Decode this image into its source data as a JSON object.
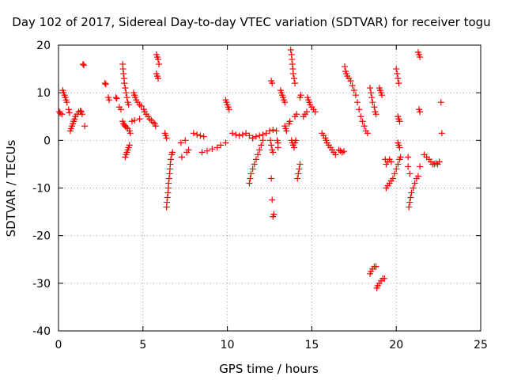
{
  "chart_data": {
    "type": "scatter",
    "title": "Day 102 of 2017, Sidereal Day-to-day VTEC variation (SDTVAR) for receiver togu",
    "xlabel": "GPS time / hours",
    "ylabel": "SDTVAR / TECUs",
    "xlim": [
      0,
      25
    ],
    "ylim": [
      -40,
      20
    ],
    "xticks": [
      "0",
      "5",
      "10",
      "15",
      "20",
      "25"
    ],
    "yticks": [
      "20",
      "10",
      "0",
      "-10",
      "-20",
      "-30",
      "-40"
    ],
    "grid": true,
    "marker": "plus",
    "color": "#ff0000",
    "series": [
      {
        "points": [
          [
            0.05,
            6.0
          ],
          [
            0.1,
            5.7
          ],
          [
            0.2,
            5.5
          ],
          [
            0.25,
            10.5
          ],
          [
            0.3,
            10.0
          ],
          [
            0.35,
            9.5
          ],
          [
            0.4,
            9.0
          ],
          [
            0.45,
            8.5
          ],
          [
            0.5,
            8.0
          ],
          [
            0.6,
            6.5
          ],
          [
            0.65,
            5.8
          ],
          [
            0.7,
            2.0
          ],
          [
            0.75,
            2.5
          ],
          [
            0.8,
            3.0
          ],
          [
            0.85,
            3.5
          ],
          [
            0.9,
            4.0
          ],
          [
            0.95,
            4.5
          ],
          [
            1.0,
            5.0
          ],
          [
            1.1,
            5.5
          ],
          [
            1.2,
            6.0
          ],
          [
            1.3,
            6.2
          ],
          [
            1.35,
            6.0
          ],
          [
            1.4,
            5.5
          ],
          [
            1.45,
            16.0
          ],
          [
            1.5,
            15.8
          ],
          [
            1.55,
            3.0
          ],
          [
            2.75,
            12.0
          ],
          [
            2.8,
            11.8
          ],
          [
            2.95,
            9.0
          ],
          [
            3.0,
            8.5
          ],
          [
            3.4,
            9.0
          ],
          [
            3.45,
            8.8
          ],
          [
            3.6,
            7.0
          ],
          [
            3.7,
            6.5
          ],
          [
            3.8,
            16.0
          ],
          [
            3.82,
            15.0
          ],
          [
            3.85,
            14.0
          ],
          [
            3.88,
            13.0
          ],
          [
            3.9,
            12.0
          ],
          [
            3.95,
            11.0
          ],
          [
            4.0,
            10.0
          ],
          [
            4.05,
            9.0
          ],
          [
            4.1,
            8.0
          ],
          [
            4.15,
            7.5
          ],
          [
            3.8,
            4.0
          ],
          [
            3.85,
            3.5
          ],
          [
            3.9,
            3.2
          ],
          [
            3.95,
            3.0
          ],
          [
            4.0,
            2.8
          ],
          [
            4.1,
            2.5
          ],
          [
            4.2,
            2.0
          ],
          [
            4.25,
            1.5
          ],
          [
            3.95,
            -3.5
          ],
          [
            4.0,
            -3.0
          ],
          [
            4.05,
            -2.5
          ],
          [
            4.1,
            -2.0
          ],
          [
            4.15,
            -1.5
          ],
          [
            4.2,
            -1.0
          ],
          [
            4.45,
            10.0
          ],
          [
            4.5,
            9.5
          ],
          [
            4.55,
            9.0
          ],
          [
            4.6,
            8.5
          ],
          [
            4.7,
            8.0
          ],
          [
            4.8,
            7.5
          ],
          [
            4.9,
            7.2
          ],
          [
            4.35,
            4.0
          ],
          [
            4.5,
            4.2
          ],
          [
            4.8,
            4.5
          ],
          [
            5.05,
            6.5
          ],
          [
            5.1,
            6.0
          ],
          [
            5.2,
            5.5
          ],
          [
            5.3,
            5.0
          ],
          [
            5.4,
            4.5
          ],
          [
            5.5,
            4.2
          ],
          [
            5.6,
            3.8
          ],
          [
            5.7,
            3.5
          ],
          [
            5.75,
            3.0
          ],
          [
            5.8,
            18.0
          ],
          [
            5.85,
            17.5
          ],
          [
            5.9,
            17.0
          ],
          [
            5.95,
            16.0
          ],
          [
            5.8,
            14.0
          ],
          [
            5.85,
            13.5
          ],
          [
            5.9,
            13.0
          ],
          [
            6.3,
            1.5
          ],
          [
            6.35,
            1.0
          ],
          [
            6.4,
            0.5
          ],
          [
            6.4,
            -14.0
          ],
          [
            6.42,
            -13.0
          ],
          [
            6.45,
            -12.0
          ],
          [
            6.48,
            -11.0
          ],
          [
            6.5,
            -10.0
          ],
          [
            6.52,
            -9.0
          ],
          [
            6.55,
            -8.0
          ],
          [
            6.58,
            -7.0
          ],
          [
            6.6,
            -6.0
          ],
          [
            6.62,
            -5.0
          ],
          [
            6.65,
            -4.0
          ],
          [
            6.7,
            -3.0
          ],
          [
            6.75,
            -2.5
          ],
          [
            7.25,
            -0.5
          ],
          [
            7.5,
            0.0
          ],
          [
            7.3,
            -3.5
          ],
          [
            7.6,
            -2.5
          ],
          [
            7.7,
            -2.0
          ],
          [
            8.0,
            1.5
          ],
          [
            8.2,
            1.2
          ],
          [
            8.4,
            1.0
          ],
          [
            8.6,
            0.8
          ],
          [
            8.5,
            -2.5
          ],
          [
            8.8,
            -2.2
          ],
          [
            9.1,
            -1.8
          ],
          [
            9.4,
            -1.5
          ],
          [
            9.6,
            -1.0
          ],
          [
            9.9,
            -0.5
          ],
          [
            9.9,
            8.5
          ],
          [
            9.95,
            8.0
          ],
          [
            10.0,
            7.5
          ],
          [
            10.05,
            7.0
          ],
          [
            10.1,
            6.5
          ],
          [
            10.3,
            1.5
          ],
          [
            10.5,
            1.2
          ],
          [
            10.7,
            1.0
          ],
          [
            10.9,
            1.2
          ],
          [
            11.1,
            1.5
          ],
          [
            11.3,
            1.0
          ],
          [
            11.5,
            0.5
          ],
          [
            11.3,
            -9.0
          ],
          [
            11.35,
            -8.0
          ],
          [
            11.4,
            -7.0
          ],
          [
            11.5,
            -6.0
          ],
          [
            11.6,
            -5.0
          ],
          [
            11.7,
            -4.0
          ],
          [
            11.8,
            -3.0
          ],
          [
            11.9,
            -2.0
          ],
          [
            12.0,
            -1.0
          ],
          [
            12.1,
            0.0
          ],
          [
            11.5,
            0.5
          ],
          [
            11.7,
            0.8
          ],
          [
            11.9,
            1.0
          ],
          [
            12.1,
            1.2
          ],
          [
            12.3,
            1.5
          ],
          [
            12.5,
            2.0
          ],
          [
            12.7,
            2.2
          ],
          [
            12.9,
            2.0
          ],
          [
            12.55,
            0.0
          ],
          [
            12.6,
            -1.0
          ],
          [
            12.65,
            -2.0
          ],
          [
            12.7,
            -2.5
          ],
          [
            12.6,
            12.5
          ],
          [
            12.65,
            12.0
          ],
          [
            12.6,
            -8.0
          ],
          [
            12.65,
            -12.5
          ],
          [
            12.7,
            -16.0
          ],
          [
            12.75,
            -15.5
          ],
          [
            12.95,
            0.0
          ],
          [
            13.0,
            -0.5
          ],
          [
            13.0,
            -1.5
          ],
          [
            13.15,
            10.5
          ],
          [
            13.2,
            10.0
          ],
          [
            13.25,
            9.5
          ],
          [
            13.3,
            9.0
          ],
          [
            13.35,
            8.5
          ],
          [
            13.4,
            8.0
          ],
          [
            13.4,
            3.0
          ],
          [
            13.45,
            2.5
          ],
          [
            13.5,
            2.0
          ],
          [
            13.65,
            3.5
          ],
          [
            13.7,
            4.0
          ],
          [
            13.75,
            19.0
          ],
          [
            13.8,
            18.0
          ],
          [
            13.82,
            17.0
          ],
          [
            13.85,
            16.0
          ],
          [
            13.88,
            15.0
          ],
          [
            13.9,
            14.0
          ],
          [
            13.95,
            13.0
          ],
          [
            14.0,
            12.0
          ],
          [
            13.8,
            0.0
          ],
          [
            13.85,
            -0.5
          ],
          [
            13.9,
            -1.0
          ],
          [
            13.95,
            -1.5
          ],
          [
            14.0,
            -0.5
          ],
          [
            14.05,
            0.0
          ],
          [
            14.0,
            5.0
          ],
          [
            14.1,
            5.5
          ],
          [
            14.15,
            -8.0
          ],
          [
            14.2,
            -7.0
          ],
          [
            14.25,
            -6.0
          ],
          [
            14.3,
            -5.0
          ],
          [
            14.3,
            9.0
          ],
          [
            14.35,
            9.5
          ],
          [
            14.5,
            5.0
          ],
          [
            14.6,
            5.5
          ],
          [
            14.7,
            6.0
          ],
          [
            14.75,
            9.0
          ],
          [
            14.8,
            8.5
          ],
          [
            14.85,
            8.0
          ],
          [
            14.9,
            7.5
          ],
          [
            15.0,
            7.0
          ],
          [
            15.1,
            6.5
          ],
          [
            15.2,
            6.0
          ],
          [
            15.6,
            1.5
          ],
          [
            15.7,
            1.0
          ],
          [
            15.8,
            0.5
          ],
          [
            15.85,
            0.0
          ],
          [
            15.9,
            -0.5
          ],
          [
            16.0,
            -1.0
          ],
          [
            16.1,
            -1.5
          ],
          [
            16.2,
            -2.0
          ],
          [
            16.3,
            -2.5
          ],
          [
            16.4,
            -3.0
          ],
          [
            16.6,
            -2.0
          ],
          [
            16.7,
            -2.2
          ],
          [
            16.8,
            -2.5
          ],
          [
            16.9,
            -2.3
          ],
          [
            16.95,
            15.5
          ],
          [
            17.0,
            14.5
          ],
          [
            17.05,
            14.0
          ],
          [
            17.1,
            13.5
          ],
          [
            17.2,
            13.0
          ],
          [
            17.3,
            12.5
          ],
          [
            17.4,
            11.5
          ],
          [
            17.5,
            10.5
          ],
          [
            17.6,
            9.5
          ],
          [
            17.7,
            8.0
          ],
          [
            17.8,
            6.5
          ],
          [
            17.9,
            5.0
          ],
          [
            18.0,
            4.0
          ],
          [
            18.1,
            3.0
          ],
          [
            18.2,
            2.0
          ],
          [
            18.3,
            1.5
          ],
          [
            18.45,
            11.0
          ],
          [
            18.5,
            10.0
          ],
          [
            18.55,
            9.0
          ],
          [
            18.6,
            8.0
          ],
          [
            18.7,
            7.0
          ],
          [
            18.75,
            6.0
          ],
          [
            18.8,
            5.5
          ],
          [
            19.0,
            11.0
          ],
          [
            19.05,
            10.5
          ],
          [
            19.1,
            10.0
          ],
          [
            19.15,
            9.5
          ],
          [
            18.45,
            -28.0
          ],
          [
            18.5,
            -27.5
          ],
          [
            18.6,
            -27.0
          ],
          [
            18.7,
            -26.5
          ],
          [
            18.8,
            -26.5
          ],
          [
            18.85,
            -31.0
          ],
          [
            18.9,
            -30.5
          ],
          [
            19.0,
            -30.0
          ],
          [
            19.1,
            -29.5
          ],
          [
            19.2,
            -29.0
          ],
          [
            19.3,
            -29.0
          ],
          [
            19.35,
            -4.0
          ],
          [
            19.4,
            -5.0
          ],
          [
            19.5,
            -4.5
          ],
          [
            19.6,
            -4.0
          ],
          [
            19.7,
            -4.5
          ],
          [
            19.4,
            -10.0
          ],
          [
            19.5,
            -9.5
          ],
          [
            19.6,
            -9.0
          ],
          [
            19.7,
            -8.5
          ],
          [
            19.8,
            -8.0
          ],
          [
            19.9,
            -7.0
          ],
          [
            20.0,
            -6.0
          ],
          [
            20.1,
            -5.0
          ],
          [
            20.2,
            -4.0
          ],
          [
            20.25,
            -3.5
          ],
          [
            20.0,
            15.0
          ],
          [
            20.05,
            14.0
          ],
          [
            20.1,
            13.0
          ],
          [
            20.15,
            12.0
          ],
          [
            20.1,
            5.0
          ],
          [
            20.15,
            4.5
          ],
          [
            20.2,
            4.0
          ],
          [
            20.1,
            -0.5
          ],
          [
            20.15,
            -1.0
          ],
          [
            20.2,
            -1.5
          ],
          [
            20.7,
            -3.5
          ],
          [
            20.7,
            -5.5
          ],
          [
            20.8,
            -7.0
          ],
          [
            20.75,
            -14.0
          ],
          [
            20.8,
            -13.0
          ],
          [
            20.85,
            -12.0
          ],
          [
            20.9,
            -11.0
          ],
          [
            21.0,
            -10.0
          ],
          [
            21.1,
            -9.0
          ],
          [
            21.2,
            -8.0
          ],
          [
            21.3,
            -7.5
          ],
          [
            21.3,
            18.5
          ],
          [
            21.35,
            18.0
          ],
          [
            21.4,
            17.5
          ],
          [
            21.35,
            6.5
          ],
          [
            21.4,
            6.0
          ],
          [
            21.4,
            -5.5
          ],
          [
            21.65,
            -3.0
          ],
          [
            21.8,
            -3.5
          ],
          [
            21.95,
            -4.0
          ],
          [
            22.05,
            -4.5
          ],
          [
            22.15,
            -5.0
          ],
          [
            22.25,
            -5.0
          ],
          [
            22.35,
            -4.8
          ],
          [
            22.45,
            -5.0
          ],
          [
            22.55,
            -4.5
          ],
          [
            22.65,
            8.0
          ],
          [
            22.7,
            1.5
          ]
        ]
      }
    ]
  }
}
